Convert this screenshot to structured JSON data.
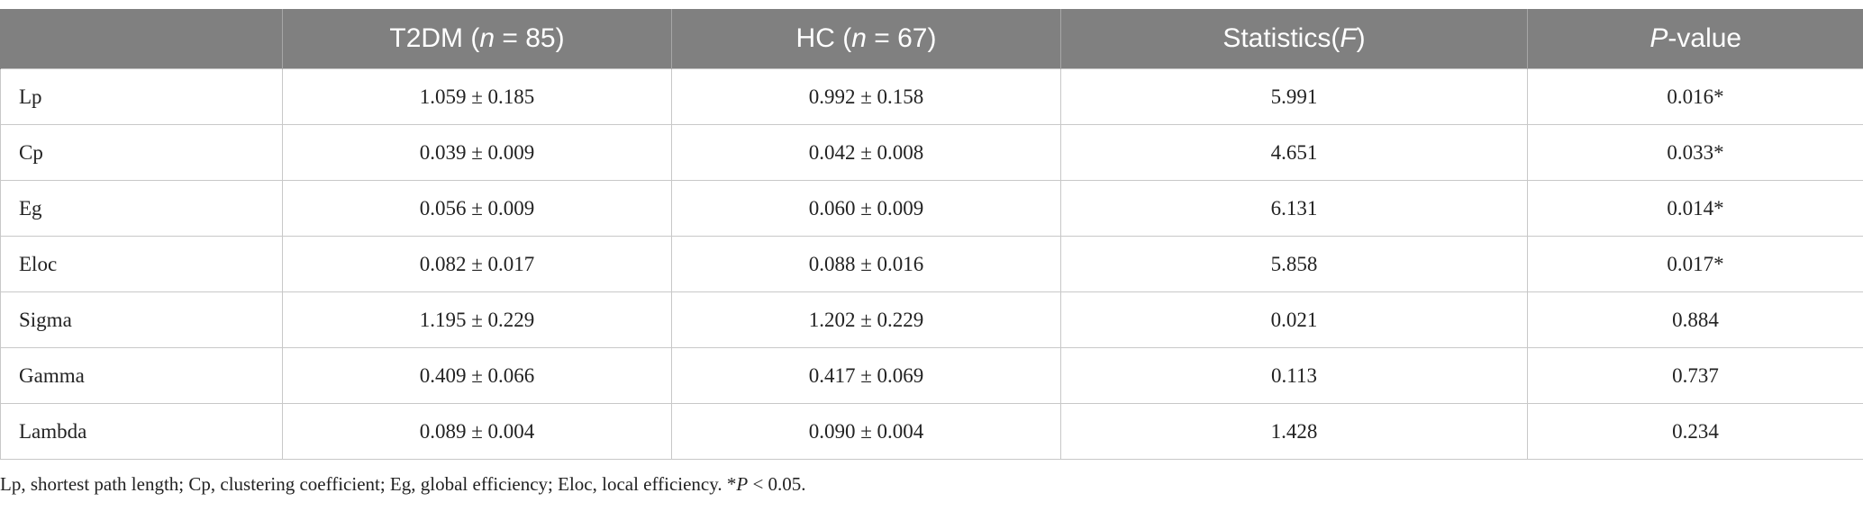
{
  "table": {
    "header": [
      [
        "T2DM (",
        "n",
        " = 85)"
      ],
      [
        "HC (",
        "n",
        " = 67)"
      ],
      [
        "Statistics(",
        "F",
        ")"
      ],
      [
        "",
        "P",
        "-value"
      ]
    ],
    "rows": [
      [
        "Lp",
        "1.059 ± 0.185",
        "0.992 ± 0.158",
        "5.991",
        "0.016*"
      ],
      [
        "Cp",
        "0.039 ± 0.009",
        "0.042 ± 0.008",
        "4.651",
        "0.033*"
      ],
      [
        "Eg",
        "0.056 ± 0.009",
        "0.060 ± 0.009",
        "6.131",
        "0.014*"
      ],
      [
        "Eloc",
        "0.082 ± 0.017",
        "0.088 ± 0.016",
        "5.858",
        "0.017*"
      ],
      [
        "Sigma",
        "1.195 ± 0.229",
        "1.202 ± 0.229",
        "0.021",
        "0.884"
      ],
      [
        "Gamma",
        "0.409 ± 0.066",
        "0.417 ± 0.069",
        "0.113",
        "0.737"
      ],
      [
        "Lambda",
        "0.089 ± 0.004",
        "0.090 ± 0.004",
        "1.428",
        "0.234"
      ]
    ],
    "footnote": [
      "Lp, shortest path length; Cp, clustering coefficient; Eg, global efficiency; Eloc, local efficiency. *",
      "P",
      " < 0.05."
    ]
  }
}
